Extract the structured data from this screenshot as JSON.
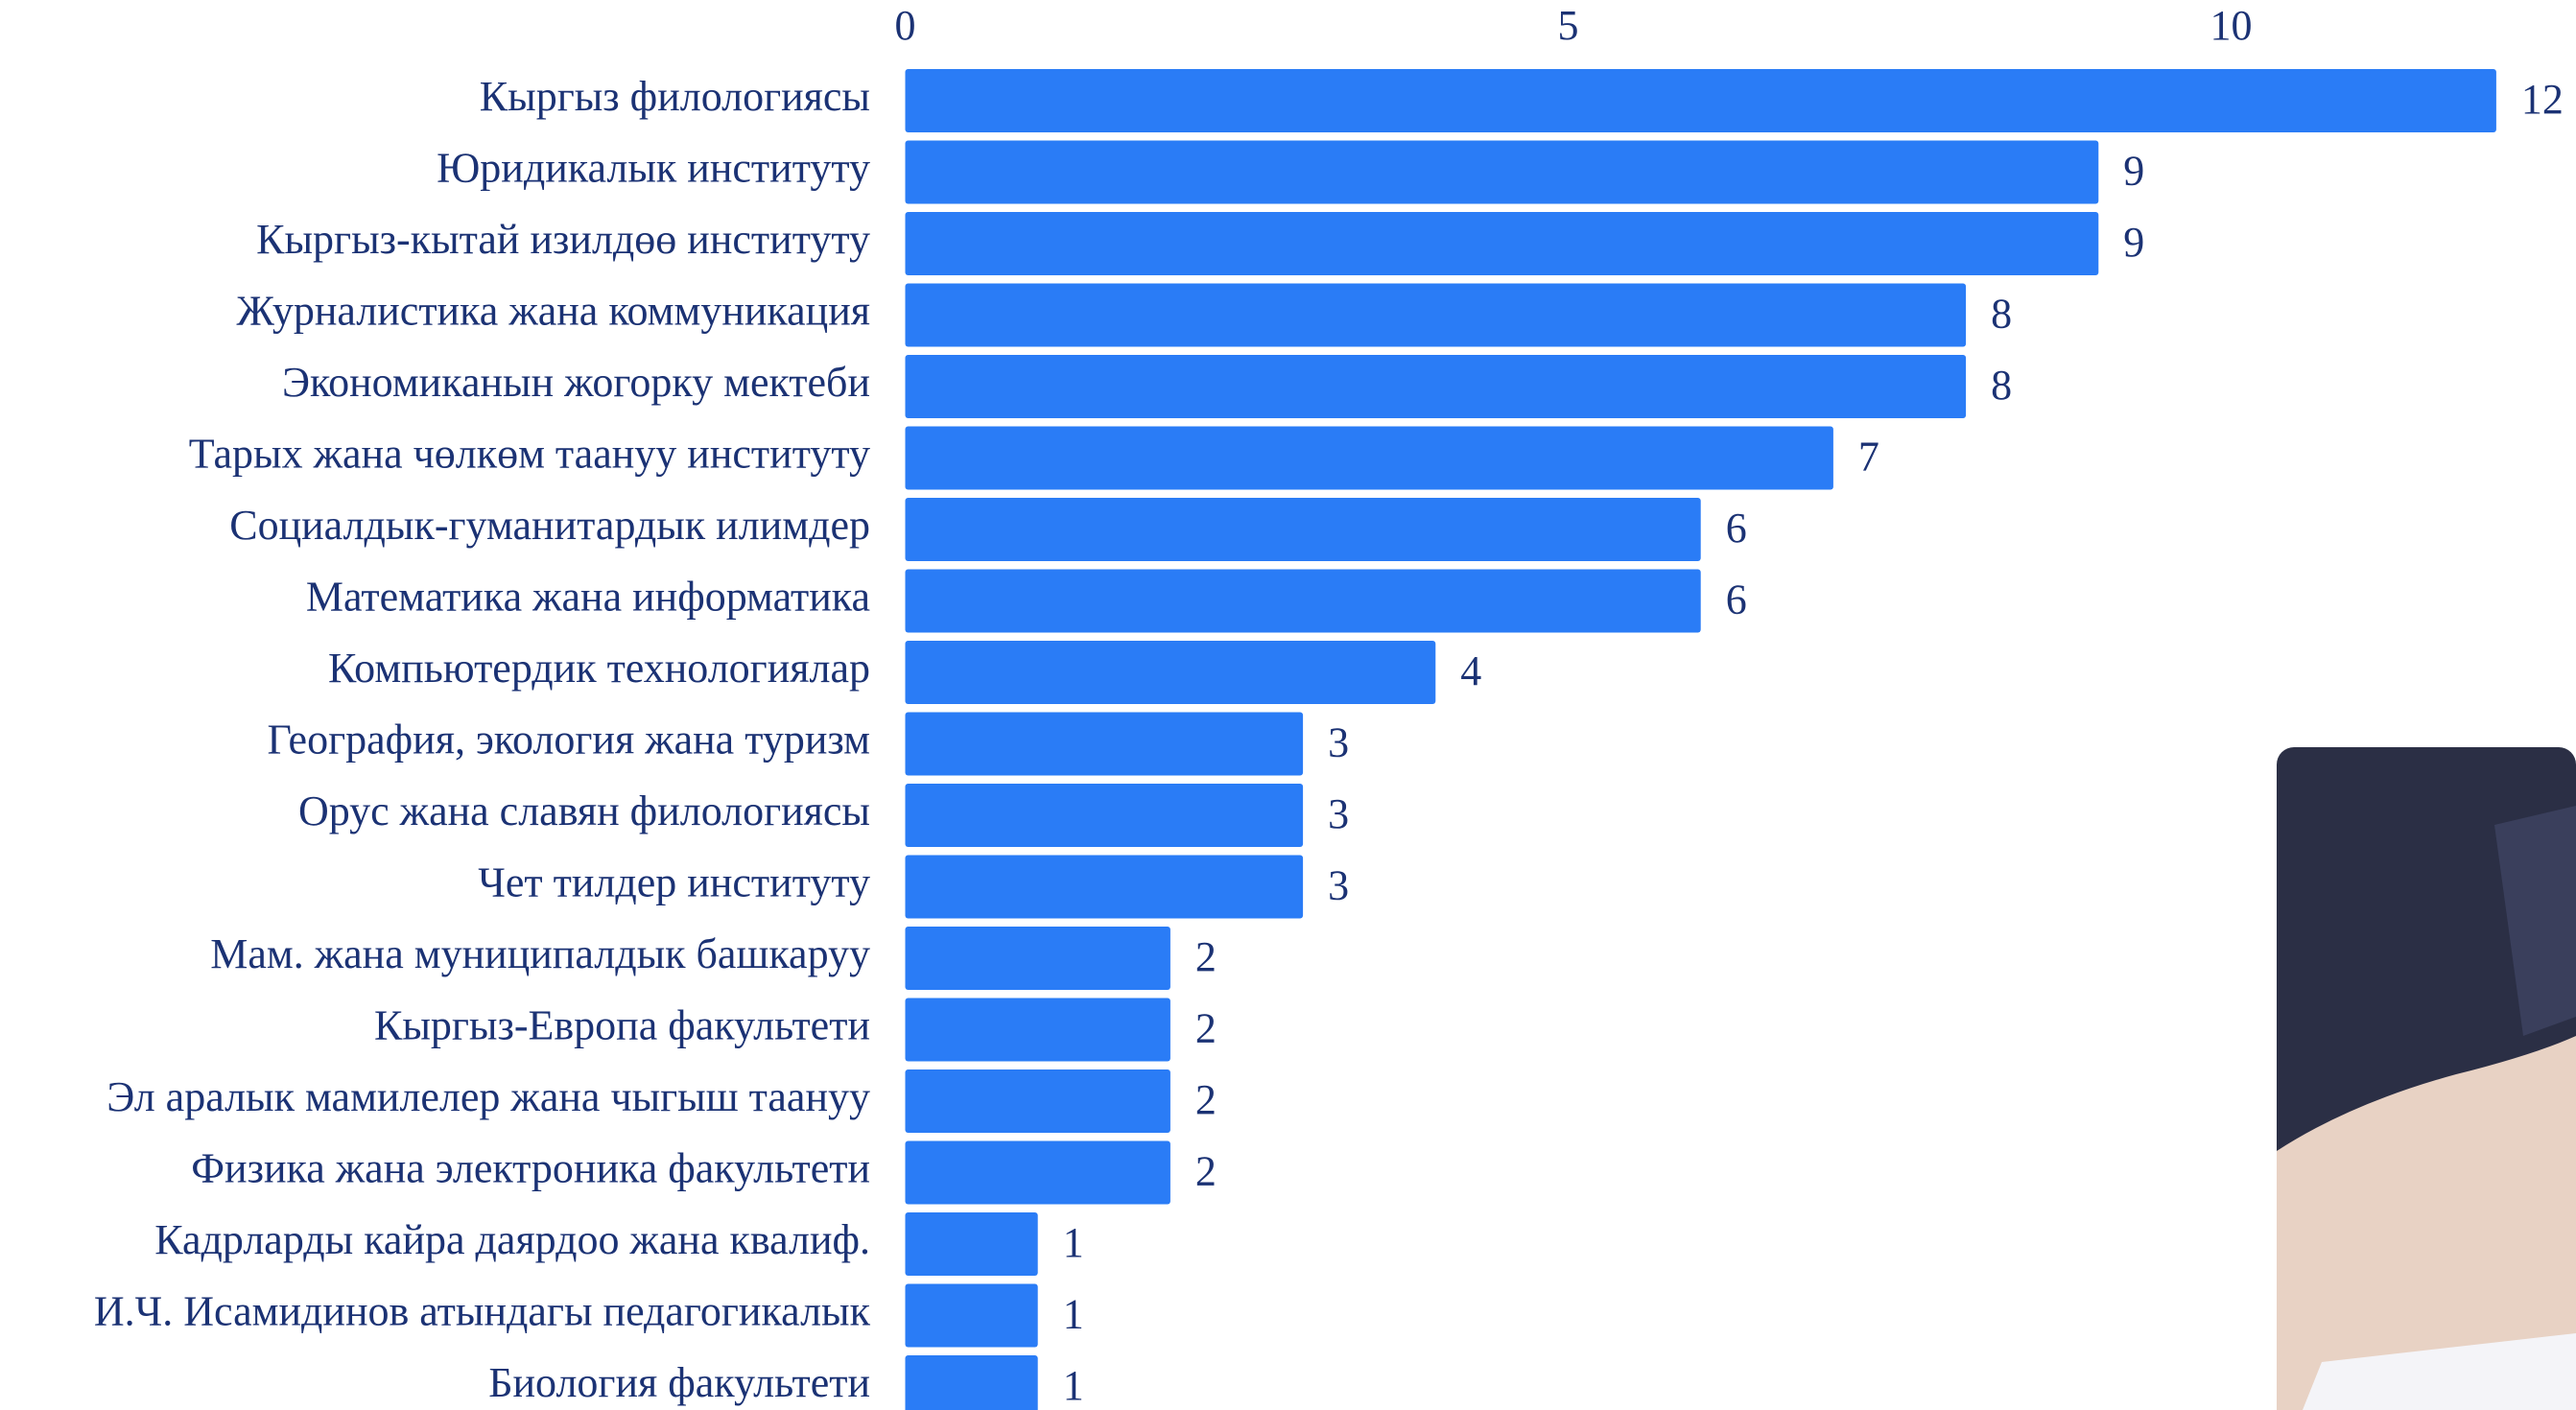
{
  "chart_data": {
    "type": "barh",
    "categories": [
      "Кыргыз филологиясы",
      "Юридикалык институту",
      "Кыргыз-кытай изилдөө институту",
      "Журналистика жана коммуникация",
      "Экономиканын жогорку мектеби",
      "Тарых жана чөлкөм таануу институту",
      "Социалдык-гуманитардык илимдер",
      "Математика жана информатика",
      "Компьютердик технологиялар",
      "География, экология жана туризм",
      "Орус жана славян филологиясы",
      "Чет тилдер институту",
      "Мам. жана муниципалдык башкаруу",
      "Кыргыз-Европа факультети",
      "Эл аралык мамилелер жана чыгыш таануу",
      "Физика жана электроника факультети",
      "Кадрларды кайра даярдоо жана квалиф.",
      "И.Ч. Исамидинов атындагы педагогикалык",
      "Биология факультети"
    ],
    "values": [
      12,
      9,
      9,
      8,
      8,
      7,
      6,
      6,
      4,
      3,
      3,
      3,
      2,
      2,
      2,
      2,
      1,
      1,
      1
    ],
    "color": "#2a7cf6",
    "xlim": [
      0,
      12
    ],
    "xticks": [
      0,
      5,
      10
    ],
    "grid": false
  }
}
